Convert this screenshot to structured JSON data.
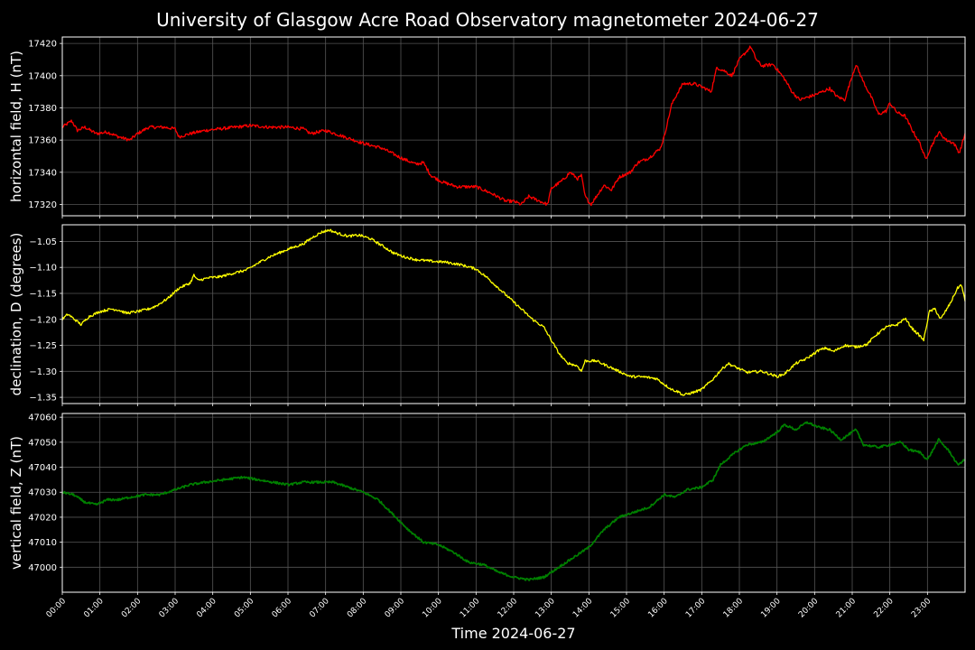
{
  "chart_data": {
    "type": "line",
    "title": "University of Glasgow Acre Road Observatory magnetometer 2024-06-27",
    "xlabel": "Time 2024-06-27",
    "x_unit": "hours",
    "xlim": [
      0,
      24
    ],
    "x_ticks": [
      "00:00",
      "01:00",
      "02:00",
      "03:00",
      "04:00",
      "05:00",
      "06:00",
      "07:00",
      "08:00",
      "09:00",
      "10:00",
      "11:00",
      "12:00",
      "13:00",
      "14:00",
      "15:00",
      "16:00",
      "17:00",
      "18:00",
      "19:00",
      "20:00",
      "21:00",
      "22:00",
      "23:00"
    ],
    "grid": true,
    "panels": [
      {
        "name": "H",
        "ylabel": "horizontal field, H (nT)",
        "color": "#ff0000",
        "ylim": [
          17313,
          17424
        ],
        "y_ticks": [
          17320,
          17340,
          17360,
          17380,
          17400,
          17420
        ],
        "tick_decimals": 0,
        "noise": 1.0,
        "series": [
          [
            0,
            17368
          ],
          [
            0.25,
            17372
          ],
          [
            0.4,
            17366
          ],
          [
            0.6,
            17368
          ],
          [
            0.9,
            17364
          ],
          [
            1.2,
            17365
          ],
          [
            1.5,
            17362
          ],
          [
            1.8,
            17360
          ],
          [
            2.0,
            17364
          ],
          [
            2.3,
            17368
          ],
          [
            2.7,
            17368
          ],
          [
            3.0,
            17367
          ],
          [
            3.1,
            17362
          ],
          [
            3.4,
            17364
          ],
          [
            3.8,
            17366
          ],
          [
            4.2,
            17367
          ],
          [
            4.6,
            17368
          ],
          [
            5.0,
            17369
          ],
          [
            5.5,
            17368
          ],
          [
            6.0,
            17368
          ],
          [
            6.4,
            17367
          ],
          [
            6.6,
            17364
          ],
          [
            7.0,
            17366
          ],
          [
            7.5,
            17362
          ],
          [
            8.0,
            17358
          ],
          [
            8.5,
            17355
          ],
          [
            9.0,
            17349
          ],
          [
            9.4,
            17345
          ],
          [
            9.6,
            17346
          ],
          [
            9.8,
            17338
          ],
          [
            10.1,
            17334
          ],
          [
            10.5,
            17331
          ],
          [
            11.0,
            17331
          ],
          [
            11.4,
            17327
          ],
          [
            11.8,
            17322
          ],
          [
            12.0,
            17322
          ],
          [
            12.2,
            17320
          ],
          [
            12.4,
            17325
          ],
          [
            12.7,
            17322
          ],
          [
            12.9,
            17320
          ],
          [
            13.0,
            17330
          ],
          [
            13.3,
            17335
          ],
          [
            13.5,
            17340
          ],
          [
            13.7,
            17336
          ],
          [
            13.8,
            17338
          ],
          [
            13.9,
            17325
          ],
          [
            14.05,
            17320
          ],
          [
            14.2,
            17325
          ],
          [
            14.4,
            17332
          ],
          [
            14.6,
            17329
          ],
          [
            14.8,
            17337
          ],
          [
            15.1,
            17340
          ],
          [
            15.3,
            17346
          ],
          [
            15.6,
            17349
          ],
          [
            15.9,
            17355
          ],
          [
            16.0,
            17362
          ],
          [
            16.1,
            17372
          ],
          [
            16.2,
            17382
          ],
          [
            16.35,
            17389
          ],
          [
            16.5,
            17395
          ],
          [
            16.8,
            17395
          ],
          [
            17.1,
            17392
          ],
          [
            17.25,
            17390
          ],
          [
            17.4,
            17405
          ],
          [
            17.6,
            17403
          ],
          [
            17.8,
            17400
          ],
          [
            18.0,
            17410
          ],
          [
            18.3,
            17418
          ],
          [
            18.45,
            17410
          ],
          [
            18.6,
            17406
          ],
          [
            18.9,
            17407
          ],
          [
            19.2,
            17398
          ],
          [
            19.4,
            17390
          ],
          [
            19.6,
            17385
          ],
          [
            20.0,
            17388
          ],
          [
            20.4,
            17392
          ],
          [
            20.6,
            17387
          ],
          [
            20.8,
            17385
          ],
          [
            21.0,
            17400
          ],
          [
            21.1,
            17407
          ],
          [
            21.3,
            17396
          ],
          [
            21.5,
            17387
          ],
          [
            21.7,
            17376
          ],
          [
            21.9,
            17378
          ],
          [
            22.0,
            17383
          ],
          [
            22.2,
            17377
          ],
          [
            22.4,
            17375
          ],
          [
            22.6,
            17366
          ],
          [
            22.8,
            17358
          ],
          [
            22.95,
            17348
          ],
          [
            23.1,
            17356
          ],
          [
            23.3,
            17365
          ],
          [
            23.5,
            17360
          ],
          [
            23.7,
            17358
          ],
          [
            23.85,
            17352
          ],
          [
            24.0,
            17364
          ]
        ]
      },
      {
        "name": "D",
        "ylabel": "declination, D (degrees)",
        "color": "#ffff00",
        "ylim": [
          -1.362,
          -1.018
        ],
        "y_ticks": [
          -1.35,
          -1.3,
          -1.25,
          -1.2,
          -1.15,
          -1.1,
          -1.05
        ],
        "tick_decimals": 2,
        "noise": 0.0025,
        "series": [
          [
            0,
            -1.2
          ],
          [
            0.15,
            -1.19
          ],
          [
            0.5,
            -1.21
          ],
          [
            0.7,
            -1.195
          ],
          [
            1.0,
            -1.185
          ],
          [
            1.3,
            -1.18
          ],
          [
            1.5,
            -1.182
          ],
          [
            1.7,
            -1.188
          ],
          [
            2.0,
            -1.185
          ],
          [
            2.3,
            -1.18
          ],
          [
            2.5,
            -1.174
          ],
          [
            2.8,
            -1.16
          ],
          [
            3.1,
            -1.14
          ],
          [
            3.4,
            -1.13
          ],
          [
            3.5,
            -1.115
          ],
          [
            3.6,
            -1.125
          ],
          [
            3.9,
            -1.12
          ],
          [
            4.2,
            -1.118
          ],
          [
            4.5,
            -1.112
          ],
          [
            4.9,
            -1.105
          ],
          [
            5.2,
            -1.092
          ],
          [
            5.5,
            -1.08
          ],
          [
            6.0,
            -1.065
          ],
          [
            6.4,
            -1.055
          ],
          [
            6.7,
            -1.04
          ],
          [
            6.9,
            -1.032
          ],
          [
            7.1,
            -1.028
          ],
          [
            7.3,
            -1.034
          ],
          [
            7.6,
            -1.04
          ],
          [
            7.9,
            -1.038
          ],
          [
            8.2,
            -1.045
          ],
          [
            8.5,
            -1.058
          ],
          [
            8.8,
            -1.072
          ],
          [
            9.1,
            -1.08
          ],
          [
            9.4,
            -1.085
          ],
          [
            9.8,
            -1.088
          ],
          [
            10.2,
            -1.09
          ],
          [
            10.6,
            -1.095
          ],
          [
            11.0,
            -1.103
          ],
          [
            11.3,
            -1.12
          ],
          [
            11.6,
            -1.14
          ],
          [
            11.9,
            -1.16
          ],
          [
            12.2,
            -1.18
          ],
          [
            12.5,
            -1.2
          ],
          [
            12.8,
            -1.215
          ],
          [
            13.0,
            -1.24
          ],
          [
            13.2,
            -1.265
          ],
          [
            13.4,
            -1.283
          ],
          [
            13.7,
            -1.29
          ],
          [
            13.8,
            -1.3
          ],
          [
            13.9,
            -1.28
          ],
          [
            14.2,
            -1.28
          ],
          [
            14.5,
            -1.29
          ],
          [
            14.8,
            -1.3
          ],
          [
            15.1,
            -1.31
          ],
          [
            15.5,
            -1.311
          ],
          [
            15.8,
            -1.314
          ],
          [
            16.0,
            -1.325
          ],
          [
            16.2,
            -1.335
          ],
          [
            16.4,
            -1.34
          ],
          [
            16.5,
            -1.346
          ],
          [
            16.8,
            -1.34
          ],
          [
            17.0,
            -1.335
          ],
          [
            17.3,
            -1.315
          ],
          [
            17.5,
            -1.298
          ],
          [
            17.7,
            -1.285
          ],
          [
            17.9,
            -1.292
          ],
          [
            18.2,
            -1.302
          ],
          [
            18.6,
            -1.3
          ],
          [
            19.0,
            -1.31
          ],
          [
            19.2,
            -1.305
          ],
          [
            19.5,
            -1.285
          ],
          [
            19.8,
            -1.275
          ],
          [
            20.1,
            -1.26
          ],
          [
            20.3,
            -1.255
          ],
          [
            20.5,
            -1.262
          ],
          [
            20.8,
            -1.25
          ],
          [
            21.1,
            -1.253
          ],
          [
            21.4,
            -1.248
          ],
          [
            21.6,
            -1.232
          ],
          [
            21.9,
            -1.215
          ],
          [
            22.2,
            -1.21
          ],
          [
            22.4,
            -1.198
          ],
          [
            22.6,
            -1.218
          ],
          [
            22.8,
            -1.232
          ],
          [
            22.9,
            -1.24
          ],
          [
            23.05,
            -1.185
          ],
          [
            23.2,
            -1.18
          ],
          [
            23.35,
            -1.2
          ],
          [
            23.6,
            -1.17
          ],
          [
            23.8,
            -1.14
          ],
          [
            23.9,
            -1.133
          ],
          [
            24.0,
            -1.165
          ]
        ]
      },
      {
        "name": "Z",
        "ylabel": "vertical field, Z (nT)",
        "color": "#008000",
        "ylim": [
          46990,
          47061.5
        ],
        "y_ticks": [
          47000,
          47010,
          47020,
          47030,
          47040,
          47050,
          47060
        ],
        "tick_decimals": 0,
        "noise": 0.45,
        "series": [
          [
            0,
            47030
          ],
          [
            0.3,
            47029
          ],
          [
            0.6,
            47026
          ],
          [
            0.9,
            47025
          ],
          [
            1.2,
            47027
          ],
          [
            1.5,
            47027
          ],
          [
            1.8,
            47028
          ],
          [
            2.2,
            47029
          ],
          [
            2.6,
            47029
          ],
          [
            3.0,
            47031
          ],
          [
            3.4,
            47033
          ],
          [
            3.8,
            47034
          ],
          [
            4.3,
            47035
          ],
          [
            4.8,
            47036
          ],
          [
            5.2,
            47035
          ],
          [
            5.6,
            47034
          ],
          [
            6.0,
            47033
          ],
          [
            6.4,
            47034
          ],
          [
            6.8,
            47034
          ],
          [
            7.2,
            47034
          ],
          [
            7.6,
            47032
          ],
          [
            8.0,
            47030
          ],
          [
            8.4,
            47027
          ],
          [
            8.8,
            47021
          ],
          [
            9.2,
            47015
          ],
          [
            9.6,
            47010
          ],
          [
            10.0,
            47009
          ],
          [
            10.4,
            47006
          ],
          [
            10.8,
            47002
          ],
          [
            11.2,
            47001
          ],
          [
            11.6,
            46998
          ],
          [
            12.0,
            46996
          ],
          [
            12.4,
            46995
          ],
          [
            12.8,
            46996
          ],
          [
            13.2,
            47000
          ],
          [
            13.6,
            47004
          ],
          [
            14.0,
            47008
          ],
          [
            14.4,
            47015
          ],
          [
            14.8,
            47020
          ],
          [
            15.2,
            47022
          ],
          [
            15.6,
            47024
          ],
          [
            16.0,
            47029
          ],
          [
            16.3,
            47028
          ],
          [
            16.6,
            47031
          ],
          [
            17.0,
            47032
          ],
          [
            17.3,
            47035
          ],
          [
            17.5,
            47041
          ],
          [
            17.9,
            47046
          ],
          [
            18.2,
            47049
          ],
          [
            18.6,
            47050
          ],
          [
            18.8,
            47052
          ],
          [
            19.0,
            47054
          ],
          [
            19.2,
            47057
          ],
          [
            19.5,
            47055
          ],
          [
            19.8,
            47058
          ],
          [
            20.1,
            47056
          ],
          [
            20.4,
            47055
          ],
          [
            20.7,
            47051
          ],
          [
            20.9,
            47053
          ],
          [
            21.1,
            47055
          ],
          [
            21.3,
            47049
          ],
          [
            21.7,
            47048
          ],
          [
            22.0,
            47049
          ],
          [
            22.3,
            47050
          ],
          [
            22.5,
            47047
          ],
          [
            22.8,
            47046
          ],
          [
            23.0,
            47043
          ],
          [
            23.3,
            47051
          ],
          [
            23.6,
            47046
          ],
          [
            23.8,
            47041
          ],
          [
            24.0,
            47043
          ]
        ]
      }
    ]
  }
}
